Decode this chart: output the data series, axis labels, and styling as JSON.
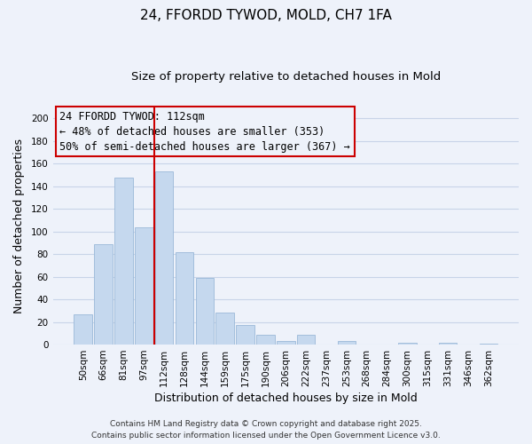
{
  "title": "24, FFORDD TYWOD, MOLD, CH7 1FA",
  "subtitle": "Size of property relative to detached houses in Mold",
  "xlabel": "Distribution of detached houses by size in Mold",
  "ylabel": "Number of detached properties",
  "categories": [
    "50sqm",
    "66sqm",
    "81sqm",
    "97sqm",
    "112sqm",
    "128sqm",
    "144sqm",
    "159sqm",
    "175sqm",
    "190sqm",
    "206sqm",
    "222sqm",
    "237sqm",
    "253sqm",
    "268sqm",
    "284sqm",
    "300sqm",
    "315sqm",
    "331sqm",
    "346sqm",
    "362sqm"
  ],
  "values": [
    27,
    89,
    148,
    104,
    153,
    82,
    59,
    28,
    17,
    9,
    3,
    9,
    0,
    3,
    0,
    0,
    2,
    0,
    2,
    0,
    1
  ],
  "bar_color": "#c5d8ee",
  "bar_edgecolor": "#9ab8d8",
  "vline_x_idx": 4,
  "vline_color": "#cc0000",
  "annotation_line1": "24 FFORDD TYWOD: 112sqm",
  "annotation_line2": "← 48% of detached houses are smaller (353)",
  "annotation_line3": "50% of semi-detached houses are larger (367) →",
  "annotation_box_edgecolor": "#cc0000",
  "ylim": [
    0,
    210
  ],
  "yticks": [
    0,
    20,
    40,
    60,
    80,
    100,
    120,
    140,
    160,
    180,
    200
  ],
  "footer_line1": "Contains HM Land Registry data © Crown copyright and database right 2025.",
  "footer_line2": "Contains public sector information licensed under the Open Government Licence v3.0.",
  "background_color": "#eef2fa",
  "grid_color": "#c8d4e8",
  "title_fontsize": 11,
  "subtitle_fontsize": 9.5,
  "axis_label_fontsize": 9,
  "tick_fontsize": 7.5,
  "annotation_fontsize": 8.5,
  "footer_fontsize": 6.5
}
